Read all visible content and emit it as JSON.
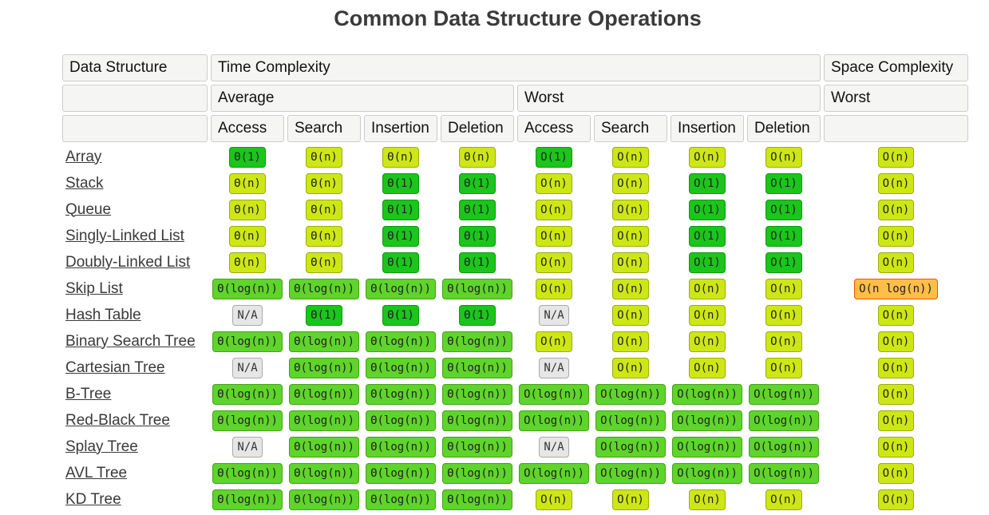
{
  "title": "Common Data Structure Operations",
  "table": {
    "headers": {
      "data_structure": "Data Structure",
      "time_complexity": "Time Complexity",
      "space_complexity": "Space Complexity",
      "average": "Average",
      "worst": "Worst",
      "space_worst": "Worst",
      "operations": [
        "Access",
        "Search",
        "Insertion",
        "Deletion"
      ]
    },
    "rows": [
      {
        "name": "Array",
        "average": [
          "Θ(1)",
          "Θ(n)",
          "Θ(n)",
          "Θ(n)"
        ],
        "worst": [
          "O(1)",
          "O(n)",
          "O(n)",
          "O(n)"
        ],
        "space": "O(n)"
      },
      {
        "name": "Stack",
        "average": [
          "Θ(n)",
          "Θ(n)",
          "Θ(1)",
          "Θ(1)"
        ],
        "worst": [
          "O(n)",
          "O(n)",
          "O(1)",
          "O(1)"
        ],
        "space": "O(n)"
      },
      {
        "name": "Queue",
        "average": [
          "Θ(n)",
          "Θ(n)",
          "Θ(1)",
          "Θ(1)"
        ],
        "worst": [
          "O(n)",
          "O(n)",
          "O(1)",
          "O(1)"
        ],
        "space": "O(n)"
      },
      {
        "name": "Singly-Linked List",
        "average": [
          "Θ(n)",
          "Θ(n)",
          "Θ(1)",
          "Θ(1)"
        ],
        "worst": [
          "O(n)",
          "O(n)",
          "O(1)",
          "O(1)"
        ],
        "space": "O(n)"
      },
      {
        "name": "Doubly-Linked List",
        "average": [
          "Θ(n)",
          "Θ(n)",
          "Θ(1)",
          "Θ(1)"
        ],
        "worst": [
          "O(n)",
          "O(n)",
          "O(1)",
          "O(1)"
        ],
        "space": "O(n)"
      },
      {
        "name": "Skip List",
        "average": [
          "Θ(log(n))",
          "Θ(log(n))",
          "Θ(log(n))",
          "Θ(log(n))"
        ],
        "worst": [
          "O(n)",
          "O(n)",
          "O(n)",
          "O(n)"
        ],
        "space": "O(n log(n))"
      },
      {
        "name": "Hash Table",
        "average": [
          "N/A",
          "Θ(1)",
          "Θ(1)",
          "Θ(1)"
        ],
        "worst": [
          "N/A",
          "O(n)",
          "O(n)",
          "O(n)"
        ],
        "space": "O(n)"
      },
      {
        "name": "Binary Search Tree",
        "average": [
          "Θ(log(n))",
          "Θ(log(n))",
          "Θ(log(n))",
          "Θ(log(n))"
        ],
        "worst": [
          "O(n)",
          "O(n)",
          "O(n)",
          "O(n)"
        ],
        "space": "O(n)"
      },
      {
        "name": "Cartesian Tree",
        "average": [
          "N/A",
          "Θ(log(n))",
          "Θ(log(n))",
          "Θ(log(n))"
        ],
        "worst": [
          "N/A",
          "O(n)",
          "O(n)",
          "O(n)"
        ],
        "space": "O(n)"
      },
      {
        "name": "B-Tree",
        "average": [
          "Θ(log(n))",
          "Θ(log(n))",
          "Θ(log(n))",
          "Θ(log(n))"
        ],
        "worst": [
          "O(log(n))",
          "O(log(n))",
          "O(log(n))",
          "O(log(n))"
        ],
        "space": "O(n)"
      },
      {
        "name": "Red-Black Tree",
        "average": [
          "Θ(log(n))",
          "Θ(log(n))",
          "Θ(log(n))",
          "Θ(log(n))"
        ],
        "worst": [
          "O(log(n))",
          "O(log(n))",
          "O(log(n))",
          "O(log(n))"
        ],
        "space": "O(n)"
      },
      {
        "name": "Splay Tree",
        "average": [
          "N/A",
          "Θ(log(n))",
          "Θ(log(n))",
          "Θ(log(n))"
        ],
        "worst": [
          "N/A",
          "O(log(n))",
          "O(log(n))",
          "O(log(n))"
        ],
        "space": "O(n)"
      },
      {
        "name": "AVL Tree",
        "average": [
          "Θ(log(n))",
          "Θ(log(n))",
          "Θ(log(n))",
          "Θ(log(n))"
        ],
        "worst": [
          "O(log(n))",
          "O(log(n))",
          "O(log(n))",
          "O(log(n))"
        ],
        "space": "O(n)"
      },
      {
        "name": "KD Tree",
        "average": [
          "Θ(log(n))",
          "Θ(log(n))",
          "Θ(log(n))",
          "Θ(log(n))"
        ],
        "worst": [
          "O(n)",
          "O(n)",
          "O(n)",
          "O(n)"
        ],
        "space": "O(n)"
      }
    ],
    "badge_color_keys": {
      "Θ(1)": "green",
      "O(1)": "green",
      "Θ(log(n))": "lightgreen",
      "O(log(n))": "lightgreen",
      "Θ(n)": "yellow",
      "O(n)": "yellow",
      "O(n log(n))": "orange",
      "N/A": "gray"
    }
  },
  "colors": {
    "title-text": "#3b3b3b",
    "header-cell-bg": "#f5f5f3",
    "header-cell-border": "#cccccc",
    "header-text": "#111111",
    "link-text": "#3a3a3a",
    "badge-text": "#222222",
    "green-bg": "#1bc51b",
    "green-border": "#0c9a0c",
    "lightgreen-bg": "#5fd42b",
    "lightgreen-border": "#44a214",
    "yellow-bg": "#cde714",
    "yellow-border": "#9cad0a",
    "orange-bg": "#ffbe46",
    "orange-border": "#ff4e00",
    "gray-bg": "#e6e6e6",
    "gray-border": "#aaaaaa"
  }
}
